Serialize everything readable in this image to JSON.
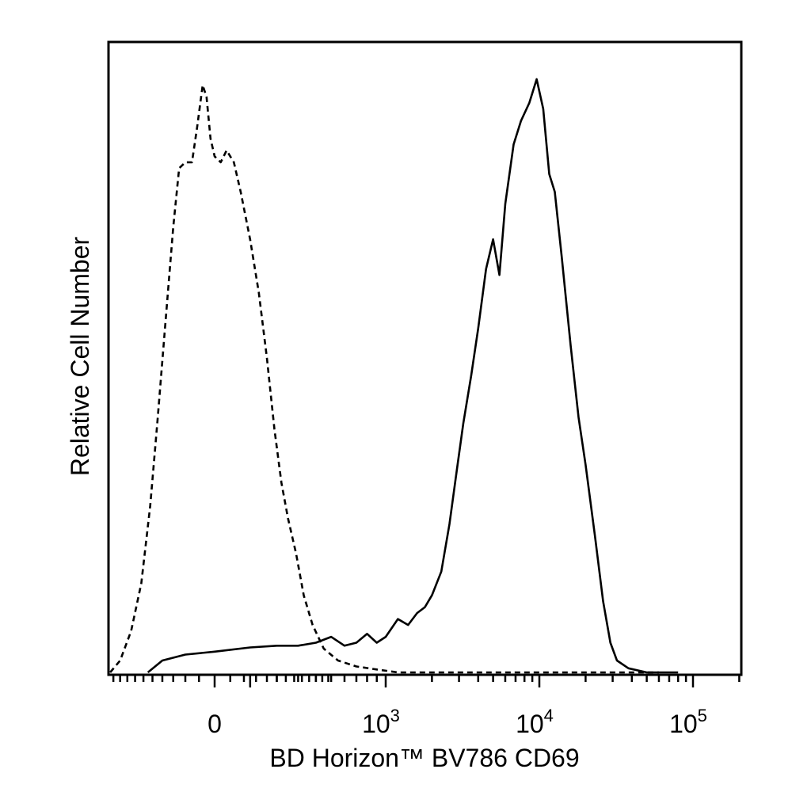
{
  "chart_data": {
    "type": "line",
    "xlabel": "BD Horizon™ BV786 CD69",
    "ylabel": "Relative Cell Number",
    "x_scale": "biexponential",
    "x_tick_labels": [
      {
        "base": "0",
        "exp": ""
      },
      {
        "base": "10",
        "exp": "3"
      },
      {
        "base": "10",
        "exp": "4"
      },
      {
        "base": "10",
        "exp": "5"
      }
    ],
    "x_tick_values": [
      0,
      1000,
      10000,
      100000
    ],
    "grid": false,
    "legend": "none",
    "series": [
      {
        "line_style": "dashed",
        "points": [
          [
            -420,
            0.0
          ],
          [
            -360,
            0.02
          ],
          [
            -300,
            0.07
          ],
          [
            -250,
            0.15
          ],
          [
            -210,
            0.28
          ],
          [
            -180,
            0.42
          ],
          [
            -150,
            0.58
          ],
          [
            -120,
            0.75
          ],
          [
            -100,
            0.85
          ],
          [
            -80,
            0.86
          ],
          [
            -60,
            0.86
          ],
          [
            -45,
            0.92
          ],
          [
            -30,
            0.99
          ],
          [
            -20,
            0.97
          ],
          [
            -10,
            0.9
          ],
          [
            0,
            0.87
          ],
          [
            15,
            0.86
          ],
          [
            30,
            0.88
          ],
          [
            50,
            0.86
          ],
          [
            70,
            0.81
          ],
          [
            100,
            0.73
          ],
          [
            130,
            0.64
          ],
          [
            160,
            0.53
          ],
          [
            190,
            0.41
          ],
          [
            220,
            0.32
          ],
          [
            250,
            0.26
          ],
          [
            290,
            0.2
          ],
          [
            330,
            0.13
          ],
          [
            380,
            0.08
          ],
          [
            450,
            0.04
          ],
          [
            550,
            0.02
          ],
          [
            700,
            0.01
          ],
          [
            900,
            0.005
          ],
          [
            1200,
            0.0
          ],
          [
            3000,
            0.0
          ],
          [
            10000,
            0.0
          ],
          [
            60000,
            0.0
          ]
        ]
      },
      {
        "line_style": "solid",
        "points": [
          [
            -220,
            0.0
          ],
          [
            -160,
            0.02
          ],
          [
            -80,
            0.03
          ],
          [
            0,
            0.035
          ],
          [
            100,
            0.042
          ],
          [
            200,
            0.045
          ],
          [
            300,
            0.045
          ],
          [
            400,
            0.05
          ],
          [
            500,
            0.06
          ],
          [
            600,
            0.045
          ],
          [
            700,
            0.05
          ],
          [
            800,
            0.065
          ],
          [
            900,
            0.05
          ],
          [
            1000,
            0.06
          ],
          [
            1200,
            0.09
          ],
          [
            1400,
            0.08
          ],
          [
            1600,
            0.1
          ],
          [
            1800,
            0.11
          ],
          [
            2000,
            0.13
          ],
          [
            2300,
            0.17
          ],
          [
            2600,
            0.25
          ],
          [
            2900,
            0.34
          ],
          [
            3200,
            0.42
          ],
          [
            3600,
            0.5
          ],
          [
            4000,
            0.58
          ],
          [
            4500,
            0.68
          ],
          [
            5000,
            0.73
          ],
          [
            5500,
            0.67
          ],
          [
            6000,
            0.79
          ],
          [
            6800,
            0.89
          ],
          [
            7600,
            0.93
          ],
          [
            8600,
            0.96
          ],
          [
            9600,
            1.0
          ],
          [
            10600,
            0.95
          ],
          [
            11600,
            0.84
          ],
          [
            12600,
            0.81
          ],
          [
            14000,
            0.7
          ],
          [
            16000,
            0.55
          ],
          [
            18000,
            0.43
          ],
          [
            20000,
            0.35
          ],
          [
            23000,
            0.23
          ],
          [
            26000,
            0.12
          ],
          [
            29000,
            0.05
          ],
          [
            32000,
            0.02
          ],
          [
            38000,
            0.007
          ],
          [
            50000,
            0.0
          ],
          [
            80000,
            0.0
          ]
        ]
      }
    ]
  }
}
